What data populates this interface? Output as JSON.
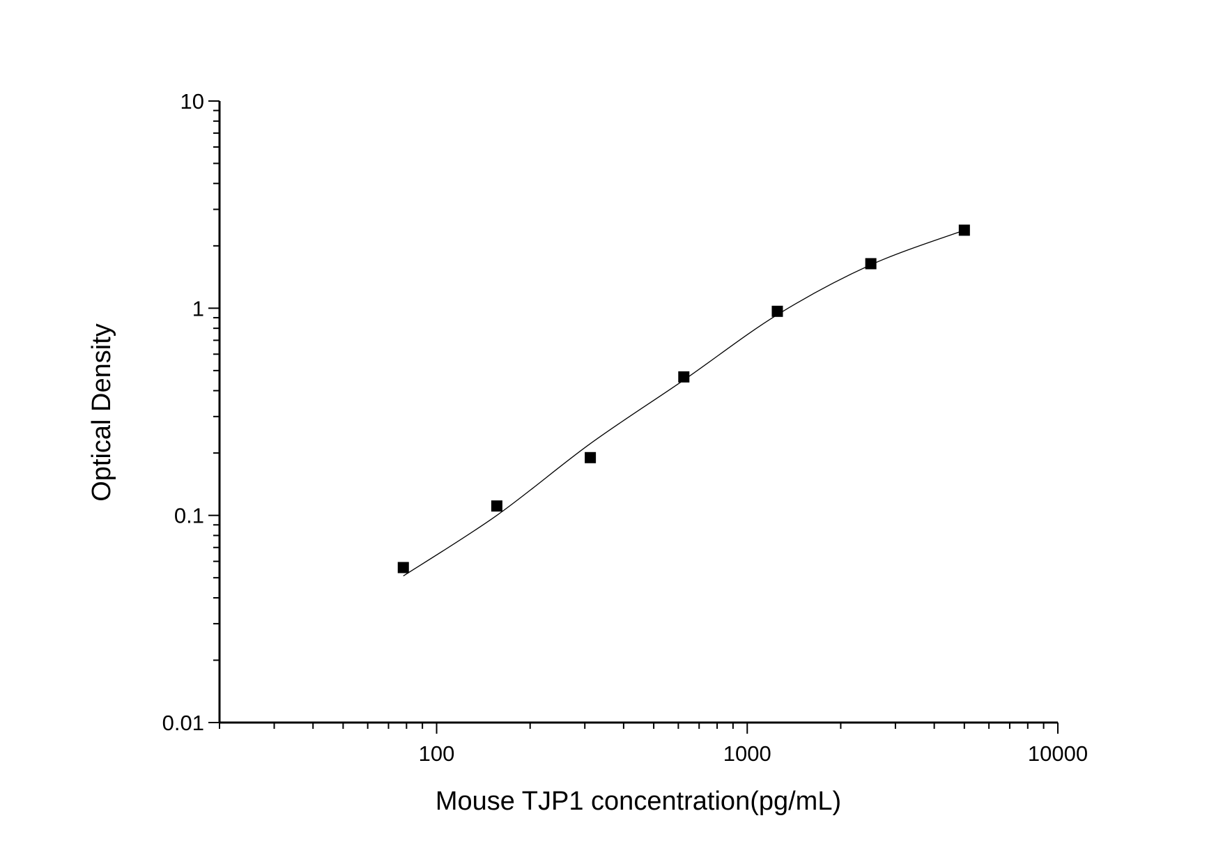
{
  "chart_data": {
    "type": "scatter",
    "title": "",
    "xlabel": "Mouse TJP1 concentration(pg/mL)",
    "ylabel": "Optical Density",
    "xscale": "log",
    "yscale": "log",
    "xlim": [
      20,
      10000
    ],
    "ylim": [
      0.01,
      10
    ],
    "x_ticks": [
      100,
      1000,
      10000
    ],
    "x_tick_labels": [
      "100",
      "1000",
      "10000"
    ],
    "y_ticks": [
      0.01,
      0.1,
      1,
      10
    ],
    "y_tick_labels": [
      "0.01",
      "0.1",
      "1",
      "10"
    ],
    "grid": false,
    "legend": "none",
    "series": [
      {
        "marker": "square",
        "color": "#000000",
        "x": [
          78.125,
          156.25,
          312.5,
          625,
          1250,
          2500,
          5000
        ],
        "y": [
          0.056,
          0.111,
          0.19,
          0.466,
          0.966,
          1.64,
          2.38
        ]
      }
    ],
    "fit_curve": {
      "type": "line",
      "color": "#000000",
      "x": [
        78.125,
        156.25,
        312.5,
        625,
        1250,
        2500,
        5000
      ],
      "y": [
        0.051,
        0.1,
        0.222,
        0.45,
        0.93,
        1.62,
        2.38
      ]
    }
  }
}
